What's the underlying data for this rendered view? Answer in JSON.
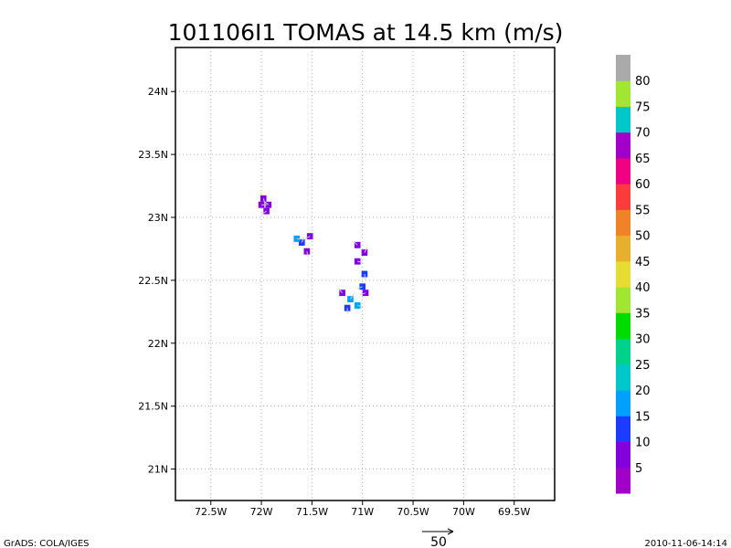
{
  "chart_data": {
    "type": "heatmap",
    "title": "101106I1 TOMAS at 14.5 km (m/s)",
    "x_ticks": [
      "72.5W",
      "72W",
      "71.5W",
      "71W",
      "70.5W",
      "70W",
      "69.5W"
    ],
    "x_values": [
      -72.5,
      -72.0,
      -71.5,
      -71.0,
      -70.5,
      -70.0,
      -69.5
    ],
    "y_ticks": [
      "21N",
      "21.5N",
      "22N",
      "22.5N",
      "23N",
      "23.5N",
      "24N"
    ],
    "y_values": [
      21.0,
      21.5,
      22.0,
      22.5,
      23.0,
      23.5,
      24.0
    ],
    "xlim": [
      -72.85,
      -69.1
    ],
    "ylim": [
      20.75,
      24.35
    ],
    "grid": true,
    "colorbar": {
      "levels": [
        "5",
        "10",
        "15",
        "20",
        "25",
        "30",
        "35",
        "40",
        "45",
        "50",
        "55",
        "60",
        "65",
        "70",
        "75",
        "80"
      ],
      "colors": [
        "#a000c8",
        "#8200dc",
        "#1e3cff",
        "#00a0ff",
        "#00c8c8",
        "#00d28c",
        "#00dc00",
        "#a0e632",
        "#e6dc32",
        "#e6af2d",
        "#f08228",
        "#fa3c3c",
        "#f00082",
        "#a000c8",
        "#00c8c8",
        "#a0e632",
        "#aaaaaa"
      ]
    },
    "cells": [
      {
        "lon": -72.0,
        "lat": 23.1,
        "speed": 5
      },
      {
        "lon": -71.98,
        "lat": 23.15,
        "speed": 5
      },
      {
        "lon": -71.95,
        "lat": 23.05,
        "speed": 5
      },
      {
        "lon": -71.93,
        "lat": 23.1,
        "speed": 5
      },
      {
        "lon": -71.6,
        "lat": 22.8,
        "speed": 10
      },
      {
        "lon": -71.65,
        "lat": 22.83,
        "speed": 15
      },
      {
        "lon": -71.55,
        "lat": 22.73,
        "speed": 5
      },
      {
        "lon": -71.52,
        "lat": 22.85,
        "speed": 5
      },
      {
        "lon": -71.05,
        "lat": 22.78,
        "speed": 5
      },
      {
        "lon": -70.98,
        "lat": 22.72,
        "speed": 5
      },
      {
        "lon": -71.05,
        "lat": 22.65,
        "speed": 5
      },
      {
        "lon": -70.98,
        "lat": 22.55,
        "speed": 10
      },
      {
        "lon": -71.0,
        "lat": 22.45,
        "speed": 10
      },
      {
        "lon": -71.2,
        "lat": 22.4,
        "speed": 5
      },
      {
        "lon": -71.12,
        "lat": 22.35,
        "speed": 15
      },
      {
        "lon": -71.05,
        "lat": 22.3,
        "speed": 15
      },
      {
        "lon": -71.15,
        "lat": 22.28,
        "speed": 10
      },
      {
        "lon": -70.97,
        "lat": 22.4,
        "speed": 5
      }
    ],
    "vector_scale": "50"
  },
  "footer": {
    "left": "GrADS: COLA/IGES",
    "right": "2010-11-06-14:14"
  }
}
